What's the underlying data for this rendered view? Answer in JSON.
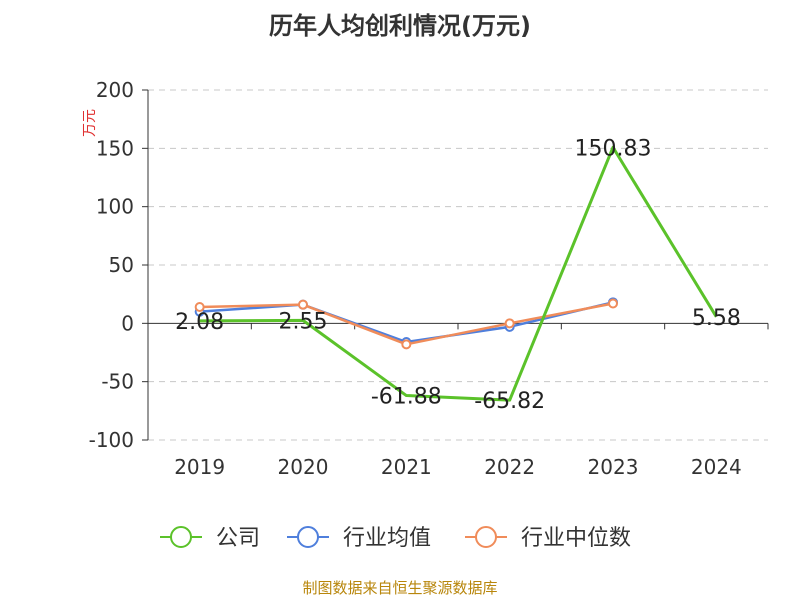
{
  "title": "历年人均创利情况(万元)",
  "source": "制图数据来自恒生聚源数据库",
  "chart_data": {
    "type": "line",
    "title": "历年人均创利情况(万元)",
    "ylabel": "万元",
    "ylim": [
      -100,
      200
    ],
    "yticks": [
      -100,
      -50,
      0,
      50,
      100,
      150,
      200
    ],
    "categories": [
      "2019",
      "2020",
      "2021",
      "2022",
      "2023",
      "2024"
    ],
    "grid": true,
    "legend_position": "bottom",
    "series": [
      {
        "name": "公司",
        "color": "#5bc22a",
        "values": [
          2.08,
          2.55,
          -61.88,
          -65.82,
          150.83,
          5.58
        ],
        "labels": [
          "2.08",
          "2.55",
          "-61.88",
          "-65.82",
          "150.83",
          "5.58"
        ]
      },
      {
        "name": "行业均值",
        "color": "#4f7fdc",
        "values": [
          10,
          16,
          -16,
          -3,
          18,
          null
        ]
      },
      {
        "name": "行业中位数",
        "color": "#f08c5a",
        "values": [
          14,
          16,
          -18,
          0,
          17,
          null
        ]
      }
    ]
  }
}
